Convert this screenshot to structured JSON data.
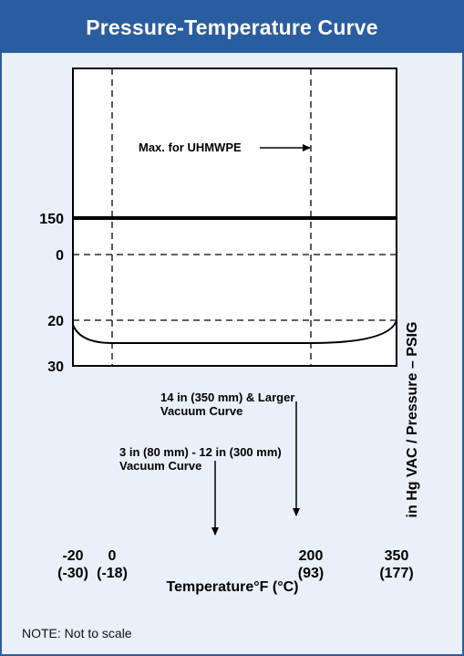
{
  "title": "Pressure-Temperature Curve",
  "note": "NOTE: Not to scale",
  "colors": {
    "frame": "#2a5d9f",
    "title_text": "#ffffff",
    "panel_background": "#e9f0fa",
    "plot_background": "#ffffff",
    "lines": "#000000"
  },
  "chart_data": {
    "type": "line",
    "title": "Pressure-Temperature Curve",
    "xlabel": "Temperature°F (°C)",
    "ylabel": "in Hg VAC / Pressure – PSIG",
    "scale_note": "Not to scale",
    "grid": false,
    "x_ticks": [
      {
        "value": -20,
        "label": "-20",
        "sublabel": "(-30)"
      },
      {
        "value": 0,
        "label": "0",
        "sublabel": "(-18)"
      },
      {
        "value": 200,
        "label": "200",
        "sublabel": "(93)"
      },
      {
        "value": 350,
        "label": "350",
        "sublabel": "(177)"
      }
    ],
    "y_ticks": [
      {
        "value": 150,
        "label": "150"
      },
      {
        "value": 0,
        "label": "0"
      },
      {
        "value": -20,
        "label": "20"
      },
      {
        "value": -30,
        "label": "30"
      }
    ],
    "series": [
      {
        "name": "",
        "style": "solid-thick",
        "points": [
          [
            -20,
            150
          ],
          [
            350,
            150
          ]
        ]
      },
      {
        "name": "",
        "style": "solid",
        "points": [
          [
            -20,
            -21
          ],
          [
            0,
            -25
          ],
          [
            200,
            -25
          ],
          [
            350,
            -20
          ]
        ]
      }
    ],
    "reference_lines": [
      {
        "axis": "x",
        "value": 0,
        "style": "dashed"
      },
      {
        "axis": "x",
        "value": 200,
        "style": "dashed"
      },
      {
        "axis": "y",
        "value": 0,
        "style": "dashed"
      },
      {
        "axis": "y",
        "value": -20,
        "style": "dashed"
      }
    ],
    "annotations": [
      {
        "id": "max-uhmwpe",
        "lines": [
          "Max. for UHMWPE"
        ]
      },
      {
        "id": "large-vacuum",
        "lines": [
          "14 in (350 mm) & Larger",
          "Vacuum Curve"
        ]
      },
      {
        "id": "small-vacuum",
        "lines": [
          "3 in (80 mm) - 12 in (300 mm)",
          "Vacuum Curve"
        ]
      }
    ]
  }
}
